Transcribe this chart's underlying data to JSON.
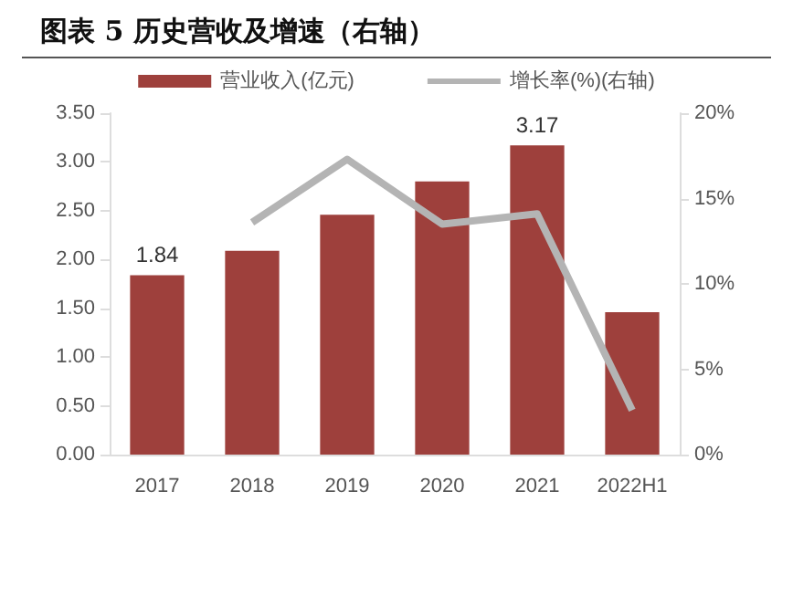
{
  "chart_data": {
    "type": "bar",
    "title": "图表 5 历史营收及增速（右轴）",
    "categories": [
      "2017",
      "2018",
      "2019",
      "2020",
      "2021",
      "2022H1"
    ],
    "series": [
      {
        "name": "营业收入(亿元)",
        "color": "#9e403c",
        "values": [
          1.84,
          2.09,
          2.46,
          2.8,
          3.17,
          1.46
        ],
        "value_labels": [
          "1.84",
          null,
          null,
          null,
          "3.17",
          null
        ]
      },
      {
        "name": "增长率(%)(右轴)",
        "type": "line",
        "axis": "y2",
        "color": "#b4b4b4",
        "values": [
          null,
          13.6,
          17.3,
          13.5,
          14.1,
          2.6
        ],
        "marker": "none"
      }
    ],
    "ylim": [
      0,
      3.5
    ],
    "yticks": [
      {
        "value": 0,
        "label": "0.00"
      },
      {
        "value": 0.5,
        "label": "0.50"
      },
      {
        "value": 1,
        "label": "1.00"
      },
      {
        "value": 1.5,
        "label": "1.50"
      },
      {
        "value": 2,
        "label": "2.00"
      },
      {
        "value": 2.5,
        "label": "2.50"
      },
      {
        "value": 3,
        "label": "3.00"
      },
      {
        "value": 3.5,
        "label": "3.50"
      }
    ],
    "y2lim": [
      0,
      20
    ],
    "y2ticks": [
      {
        "value": 0,
        "label": "0%"
      },
      {
        "value": 5,
        "label": "5%"
      },
      {
        "value": 10,
        "label": "10%"
      },
      {
        "value": 15,
        "label": "15%"
      },
      {
        "value": 20,
        "label": "20%"
      }
    ],
    "legend": "top",
    "grid": false
  }
}
